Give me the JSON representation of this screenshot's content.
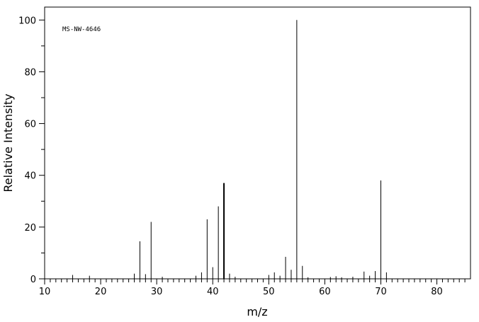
{
  "chart_data": {
    "type": "bar",
    "annotation": "MS-NW-4646",
    "xlabel": "m/z",
    "ylabel": "Relative Intensity",
    "xlim": [
      10,
      86
    ],
    "ylim": [
      0,
      105
    ],
    "x_ticks": [
      10,
      20,
      30,
      40,
      50,
      60,
      70,
      80
    ],
    "y_ticks": [
      0,
      20,
      40,
      60,
      80,
      100
    ],
    "grid": false,
    "peaks": [
      {
        "mz": 15,
        "intensity": 1.5
      },
      {
        "mz": 18,
        "intensity": 1.2
      },
      {
        "mz": 26,
        "intensity": 2.0
      },
      {
        "mz": 27,
        "intensity": 14.5
      },
      {
        "mz": 28,
        "intensity": 1.8
      },
      {
        "mz": 29,
        "intensity": 22.0
      },
      {
        "mz": 31,
        "intensity": 0.8
      },
      {
        "mz": 37,
        "intensity": 1.2
      },
      {
        "mz": 38,
        "intensity": 2.5
      },
      {
        "mz": 39,
        "intensity": 23.0
      },
      {
        "mz": 40,
        "intensity": 4.5
      },
      {
        "mz": 41,
        "intensity": 28.0
      },
      {
        "mz": 42,
        "intensity": 37.0
      },
      {
        "mz": 43,
        "intensity": 2.0
      },
      {
        "mz": 44,
        "intensity": 0.8
      },
      {
        "mz": 50,
        "intensity": 1.5
      },
      {
        "mz": 51,
        "intensity": 2.5
      },
      {
        "mz": 52,
        "intensity": 1.2
      },
      {
        "mz": 53,
        "intensity": 8.5
      },
      {
        "mz": 54,
        "intensity": 3.5
      },
      {
        "mz": 55,
        "intensity": 100.0
      },
      {
        "mz": 56,
        "intensity": 5.0
      },
      {
        "mz": 57,
        "intensity": 0.6
      },
      {
        "mz": 61,
        "intensity": 0.7
      },
      {
        "mz": 62,
        "intensity": 1.0
      },
      {
        "mz": 63,
        "intensity": 0.6
      },
      {
        "mz": 65,
        "intensity": 0.8
      },
      {
        "mz": 67,
        "intensity": 2.8
      },
      {
        "mz": 68,
        "intensity": 1.2
      },
      {
        "mz": 69,
        "intensity": 3.0
      },
      {
        "mz": 70,
        "intensity": 38.0
      },
      {
        "mz": 71,
        "intensity": 2.5
      }
    ]
  }
}
